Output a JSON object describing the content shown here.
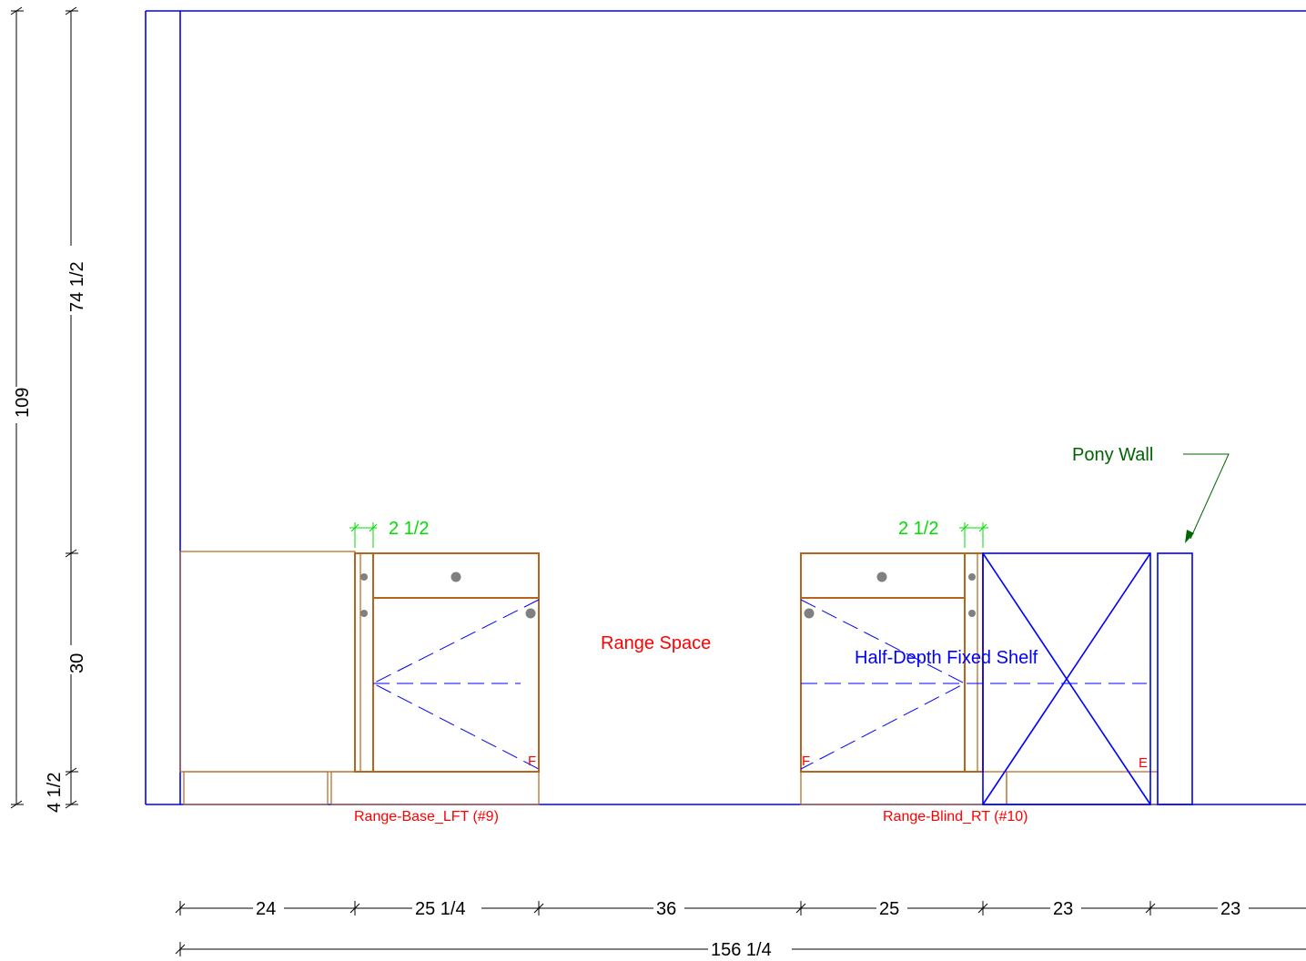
{
  "vertical_dimensions": {
    "overall": "109",
    "upper": "74 1/2",
    "cabinet": "30",
    "toe_kick": "4 1/2"
  },
  "horizontal_dimensions": {
    "segments": [
      "24",
      "25 1/4",
      "36",
      "25",
      "23",
      "23"
    ],
    "overall": "156 1/4"
  },
  "filler_dimensions": {
    "left": "2 1/2",
    "right": "2 1/2"
  },
  "labels": {
    "range_space": "Range Space",
    "half_depth_shelf": "Half-Depth Fixed Shelf",
    "pony_wall": "Pony Wall",
    "cabinet_left": "Range-Base_LFT (#9)",
    "cabinet_right": "Range-Blind_RT (#10)",
    "hinge_left": "F",
    "hinge_right": "F",
    "end_marker": "E"
  },
  "colors": {
    "wall": "#0000ff",
    "cabinet": "#b5651d",
    "dimension_text": "#000000",
    "filler_dimension": "#00dd00",
    "cabinet_label": "#ff0000",
    "annotation_note": "#006400"
  }
}
